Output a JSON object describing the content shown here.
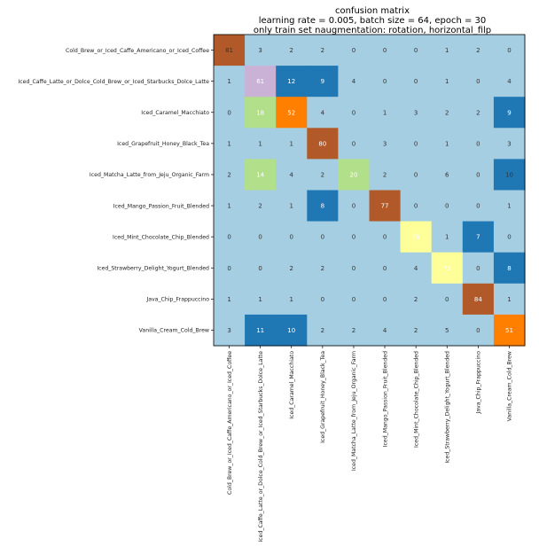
{
  "chart_data": {
    "type": "heatmap",
    "title": [
      "confusion matrix",
      "learning rate = 0.005, batch size = 64, epoch = 30",
      "only train set naugmentation: rotation, horizontal_filp"
    ],
    "xlabel": "",
    "ylabel": "",
    "row_labels": [
      "Cold_Brew_or_Iced_Caffe_Americano_or_Iced_Coffee",
      "Iced_Caffe_Latte_or_Dolce_Cold_Brew_or_Iced_Starbucks_Dolce_Latte",
      "Iced_Caramel_Macchiato",
      "Iced_Grapefruit_Honey_Black_Tea",
      "Iced_Matcha_Latte_from_Jeju_Organic_Farm",
      "Iced_Mango_Passion_Fruit_Blended",
      "Iced_Mint_Chocolate_Chip_Blended",
      "Iced_Strawberry_Delight_Yogurt_Blended",
      "Java_Chip_Frappuccino",
      "Vanilla_Cream_Cold_Brew"
    ],
    "col_labels": [
      "Cold_Brew_or_Iced_Caffe_Americano_or_Iced_Coffee",
      "Iced_Caffe_Latte_or_Dolce_Cold_Brew_or_Iced_Starbucks_Dolce_Latte",
      "Iced_Caramel_Macchiato",
      "Iced_Grapefruit_Honey_Black_Tea",
      "Iced_Matcha_Latte_from_Jeju_Organic_Farm",
      "Iced_Mango_Passion_Fruit_Blended",
      "Iced_Mint_Chocolate_Chip_Blended",
      "Iced_Strawberry_Delight_Yogurt_Blended",
      "Java_Chip_Frappuccino",
      "Vanilla_Cream_Cold_Brew"
    ],
    "matrix": [
      [
        81,
        3,
        2,
        2,
        0,
        0,
        0,
        1,
        2,
        0
      ],
      [
        1,
        61,
        12,
        9,
        4,
        0,
        0,
        1,
        0,
        4
      ],
      [
        0,
        18,
        52,
        4,
        0,
        1,
        3,
        2,
        2,
        9
      ],
      [
        1,
        1,
        1,
        80,
        0,
        3,
        0,
        1,
        0,
        3
      ],
      [
        2,
        14,
        4,
        2,
        20,
        2,
        0,
        6,
        0,
        10
      ],
      [
        1,
        2,
        1,
        8,
        0,
        77,
        0,
        0,
        0,
        1
      ],
      [
        0,
        0,
        0,
        0,
        0,
        0,
        76,
        1,
        7,
        0
      ],
      [
        0,
        0,
        2,
        2,
        0,
        0,
        4,
        73,
        0,
        8
      ],
      [
        1,
        1,
        1,
        0,
        0,
        0,
        2,
        0,
        84,
        1
      ],
      [
        3,
        11,
        10,
        2,
        2,
        4,
        2,
        5,
        0,
        51
      ]
    ],
    "colormap": "Paired",
    "colors": {
      "base": "#a6cee3",
      "blue": "#1f78b4",
      "light_green": "#b2df8a",
      "lavender": "#cab2d6",
      "orange": "#ff7f00",
      "yellow": "#ffff99",
      "brown": "#b15928"
    },
    "cell_colors": [
      [
        "brown",
        "base",
        "base",
        "base",
        "base",
        "base",
        "base",
        "base",
        "base",
        "base"
      ],
      [
        "base",
        "lavender",
        "blue",
        "blue",
        "base",
        "base",
        "base",
        "base",
        "base",
        "base"
      ],
      [
        "base",
        "light_green",
        "orange",
        "base",
        "base",
        "base",
        "base",
        "base",
        "base",
        "blue"
      ],
      [
        "base",
        "base",
        "base",
        "brown",
        "base",
        "base",
        "base",
        "base",
        "base",
        "base"
      ],
      [
        "base",
        "light_green",
        "base",
        "base",
        "light_green",
        "base",
        "base",
        "base",
        "base",
        "blue"
      ],
      [
        "base",
        "base",
        "base",
        "blue",
        "base",
        "brown",
        "base",
        "base",
        "base",
        "base"
      ],
      [
        "base",
        "base",
        "base",
        "base",
        "base",
        "base",
        "yellow",
        "base",
        "blue",
        "base"
      ],
      [
        "base",
        "base",
        "base",
        "base",
        "base",
        "base",
        "base",
        "yellow",
        "base",
        "blue"
      ],
      [
        "base",
        "base",
        "base",
        "base",
        "base",
        "base",
        "base",
        "base",
        "brown",
        "base"
      ],
      [
        "base",
        "blue",
        "blue",
        "base",
        "base",
        "base",
        "base",
        "base",
        "base",
        "orange"
      ]
    ],
    "dark_text_cells": [
      [
        0,
        0
      ],
      [
        4,
        9
      ]
    ]
  }
}
